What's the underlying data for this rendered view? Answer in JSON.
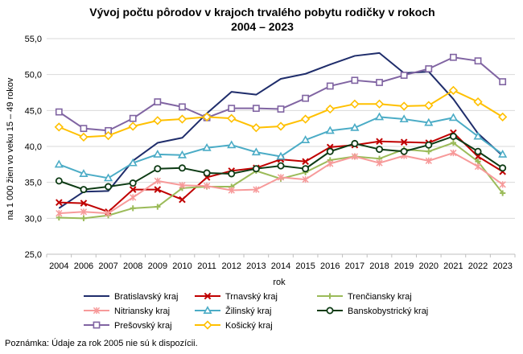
{
  "chart_data": {
    "type": "line",
    "title": "Vývoj počtu pôrodov v krajoch trvalého pobytu rodičky v rokoch",
    "subtitle": "2004 – 2023",
    "xlabel": "rok",
    "ylabel": "na 1 000 žien vo veku 15 – 49 rokov",
    "ylim": [
      25,
      55
    ],
    "yticks": [
      "25,0",
      "30,0",
      "35,0",
      "40,0",
      "45,0",
      "50,0",
      "55,0"
    ],
    "categories": [
      "2004",
      "2006",
      "2007",
      "2008",
      "2009",
      "2010",
      "2011",
      "2012",
      "2013",
      "2014",
      "2015",
      "2016",
      "2017",
      "2018",
      "2019",
      "2020",
      "2021",
      "2022",
      "2023"
    ],
    "grid": true,
    "legend_position": "bottom",
    "note": "Poznámka: Údaje za rok 2005 nie sú k dispozícii.",
    "series": [
      {
        "name": "Bratislavský kraj",
        "color": "#1f2d6b",
        "marker": "none",
        "values": [
          31.4,
          33.7,
          33.8,
          38.0,
          40.5,
          41.2,
          44.6,
          47.6,
          47.2,
          49.4,
          50.1,
          51.4,
          52.6,
          53.0,
          50.2,
          50.4,
          46.6,
          41.8,
          38.7
        ]
      },
      {
        "name": "Trnavský kraj",
        "color": "#c00000",
        "marker": "x",
        "values": [
          32.2,
          32.1,
          30.9,
          34.0,
          34.0,
          32.6,
          35.7,
          36.6,
          37.0,
          38.2,
          37.9,
          39.9,
          40.2,
          40.7,
          40.6,
          40.5,
          41.9,
          38.6,
          36.5
        ]
      },
      {
        "name": "Trenčiansky kraj",
        "color": "#9bbb59",
        "marker": "plus",
        "values": [
          30.1,
          30.0,
          30.4,
          31.4,
          31.6,
          34.2,
          34.4,
          34.4,
          36.6,
          35.5,
          36.4,
          38.1,
          38.6,
          38.3,
          39.6,
          39.3,
          40.5,
          37.9,
          33.5
        ]
      },
      {
        "name": "Nitriansky kraj",
        "color": "#f79a9a",
        "marker": "asterisk",
        "values": [
          30.7,
          30.9,
          30.7,
          32.9,
          35.2,
          34.6,
          34.5,
          33.9,
          34.0,
          35.7,
          35.4,
          37.6,
          38.6,
          37.7,
          38.7,
          38.0,
          39.1,
          37.2,
          34.7
        ]
      },
      {
        "name": "Žilinský kraj",
        "color": "#4bacc6",
        "marker": "triangle",
        "values": [
          37.5,
          36.2,
          35.6,
          37.7,
          38.9,
          38.8,
          39.8,
          40.2,
          39.2,
          38.6,
          40.9,
          42.2,
          42.6,
          44.1,
          43.8,
          43.3,
          44.0,
          41.4,
          38.9
        ]
      },
      {
        "name": "Banskobystrický kraj",
        "color": "#0d3b14",
        "marker": "circle",
        "values": [
          35.2,
          34.0,
          34.4,
          34.9,
          36.9,
          37.0,
          36.3,
          36.2,
          36.9,
          37.3,
          36.9,
          39.3,
          40.4,
          39.6,
          39.3,
          40.2,
          41.4,
          39.3,
          37.0
        ]
      },
      {
        "name": "Prešovský kraj",
        "color": "#8064a2",
        "marker": "square",
        "values": [
          44.8,
          42.5,
          42.2,
          43.9,
          46.2,
          45.5,
          44.0,
          45.3,
          45.3,
          45.2,
          46.7,
          48.4,
          49.2,
          48.9,
          49.9,
          50.8,
          52.4,
          51.9,
          49.0
        ]
      },
      {
        "name": "Košický kraj",
        "color": "#ffc000",
        "marker": "diamond",
        "values": [
          42.7,
          41.3,
          41.5,
          42.8,
          43.6,
          43.8,
          44.1,
          43.9,
          42.6,
          42.8,
          43.8,
          45.2,
          45.9,
          45.9,
          45.6,
          45.7,
          47.8,
          46.2,
          44.1
        ]
      }
    ]
  }
}
